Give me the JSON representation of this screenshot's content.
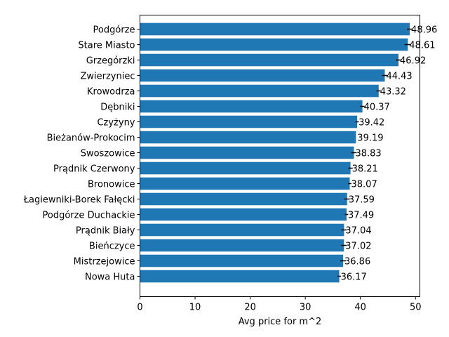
{
  "chart_data": {
    "type": "bar",
    "orientation": "horizontal",
    "categories": [
      "Podgórze",
      "Stare Miasto",
      "Grzegórzki",
      "Zwierzyniec",
      "Krowodrza",
      "Dębniki",
      "Czyżyny",
      "Bieżanów-Prokocim",
      "Swoszowice",
      "Prądnik Czerwony",
      "Bronowice",
      "Łagiewniki-Borek Fałęcki",
      "Podgórze Duchackie",
      "Prądnik Biały",
      "Bieńczyce",
      "Mistrzejowice",
      "Nowa Huta"
    ],
    "values": [
      48.96,
      48.61,
      46.92,
      44.43,
      43.32,
      40.37,
      39.42,
      39.19,
      38.83,
      38.21,
      38.07,
      37.59,
      37.49,
      37.04,
      37.02,
      36.86,
      36.17
    ],
    "error": [
      0.5,
      0.6,
      0.5,
      0.5,
      0.4,
      0.4,
      0.3,
      0.0,
      0.5,
      0.4,
      0.3,
      0.5,
      0.3,
      0.5,
      0.5,
      0.5,
      0.3
    ],
    "value_labels": [
      "48.96",
      "48.61",
      "46.92",
      "44.43",
      "43.32",
      "40.37",
      "39.42",
      "39.19",
      "38.83",
      "38.21",
      "38.07",
      "37.59",
      "37.49",
      "37.04",
      "37.02",
      "36.86",
      "36.17"
    ],
    "xlabel": "Avg price for m^2",
    "ylabel": "",
    "title": "",
    "xlim": [
      0,
      50.8
    ],
    "xticks": [
      0,
      10,
      20,
      30,
      40,
      50
    ],
    "xtick_labels": [
      "0",
      "10",
      "20",
      "30",
      "40",
      "50"
    ],
    "grid": false,
    "colors": {
      "bar": "#1f77b4",
      "error_bar": "#000000",
      "axis": "#000000"
    }
  }
}
